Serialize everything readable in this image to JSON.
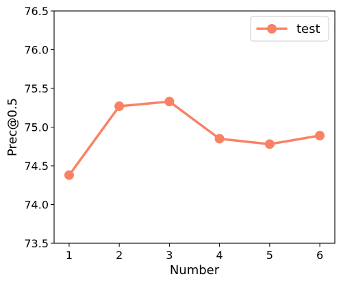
{
  "chart_data": {
    "type": "line",
    "xlabel": "Number",
    "ylabel": "Prec@0.5",
    "xlim": [
      0.7,
      6.3
    ],
    "ylim": [
      73.5,
      76.5
    ],
    "x_ticks": [
      "1",
      "2",
      "3",
      "4",
      "5",
      "6"
    ],
    "y_ticks": [
      "73.5",
      "74.0",
      "74.5",
      "75.0",
      "75.5",
      "76.0",
      "76.5"
    ],
    "grid": false,
    "legend_position": "top-right",
    "series": [
      {
        "name": "test",
        "color": "#fa8264",
        "marker": "circle",
        "x": [
          1,
          2,
          3,
          4,
          5,
          6
        ],
        "values": [
          74.38,
          75.27,
          75.33,
          74.85,
          74.78,
          74.89
        ]
      }
    ]
  }
}
